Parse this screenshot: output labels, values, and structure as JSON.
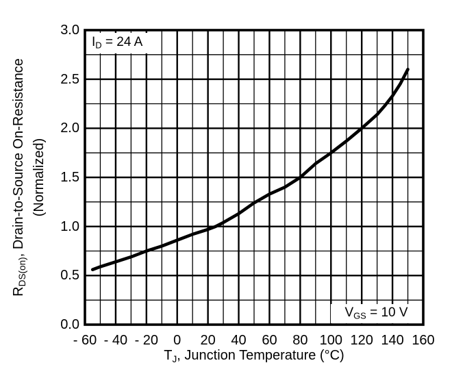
{
  "chart_data": {
    "type": "line",
    "title": "",
    "xlabel_text": "TJ, Junction Temperature (°C)",
    "xlabel_segments": [
      {
        "t": "T"
      },
      {
        "t": "J",
        "sub": true
      },
      {
        "t": ", Junction Temperature (°C)"
      }
    ],
    "ylabel_text": "RDS(on), Drain-to-Source On-Resistance (Normalized)",
    "ylabel_line1_segments": [
      {
        "t": "R"
      },
      {
        "t": "DS(on)",
        "sub": true
      },
      {
        "t": ", Drain-to-Source On-Resistance"
      }
    ],
    "ylabel_line2": "(Normalized)",
    "xlim": [
      -60,
      160
    ],
    "ylim": [
      0,
      3.0
    ],
    "x_major_step": 20,
    "x_minor_step": 10,
    "y_major_step": 0.5,
    "y_minor_step": 0.25,
    "x_tick_labels": [
      "- 60",
      "- 40",
      "- 20",
      "0",
      "20",
      "40",
      "60",
      "80",
      "100",
      "120",
      "140",
      "160"
    ],
    "x_tick_values": [
      -60,
      -40,
      -20,
      0,
      20,
      40,
      60,
      80,
      100,
      120,
      140,
      160
    ],
    "y_tick_labels": [
      "0.0",
      "0.5",
      "1.0",
      "1.5",
      "2.0",
      "2.5",
      "3.0"
    ],
    "y_tick_values": [
      0,
      0.5,
      1.0,
      1.5,
      2.0,
      2.5,
      3.0
    ],
    "grid": "major+minor",
    "legend": "none",
    "series": [
      {
        "name": "RDS(on) normalized vs TJ",
        "points": [
          [
            -55,
            0.56
          ],
          [
            -50,
            0.59
          ],
          [
            -40,
            0.64
          ],
          [
            -30,
            0.69
          ],
          [
            -20,
            0.75
          ],
          [
            -10,
            0.8
          ],
          [
            0,
            0.86
          ],
          [
            10,
            0.92
          ],
          [
            20,
            0.97
          ],
          [
            25,
            1.0
          ],
          [
            30,
            1.04
          ],
          [
            40,
            1.13
          ],
          [
            50,
            1.24
          ],
          [
            60,
            1.33
          ],
          [
            70,
            1.4
          ],
          [
            80,
            1.5
          ],
          [
            90,
            1.64
          ],
          [
            100,
            1.75
          ],
          [
            110,
            1.87
          ],
          [
            120,
            2.0
          ],
          [
            130,
            2.14
          ],
          [
            135,
            2.23
          ],
          [
            140,
            2.33
          ],
          [
            145,
            2.45
          ],
          [
            150,
            2.6
          ]
        ]
      }
    ],
    "annotations": [
      {
        "id": "id-condition",
        "text": "ID = 24 A",
        "segments": [
          {
            "t": "I"
          },
          {
            "t": "D",
            "sub": true
          },
          {
            "t": " = 24 A"
          }
        ],
        "position": "top-left"
      },
      {
        "id": "vgs-condition",
        "text": "VGS = 10 V",
        "segments": [
          {
            "t": "V"
          },
          {
            "t": "GS",
            "sub": true
          },
          {
            "t": " = 10 V"
          }
        ],
        "position": "bottom-right"
      }
    ],
    "colors": {
      "axis": "#000000",
      "grid_major": "#000000",
      "grid_minor": "#000000",
      "curve": "#000000",
      "text": "#000000",
      "plot_background": "#ffffff"
    }
  }
}
